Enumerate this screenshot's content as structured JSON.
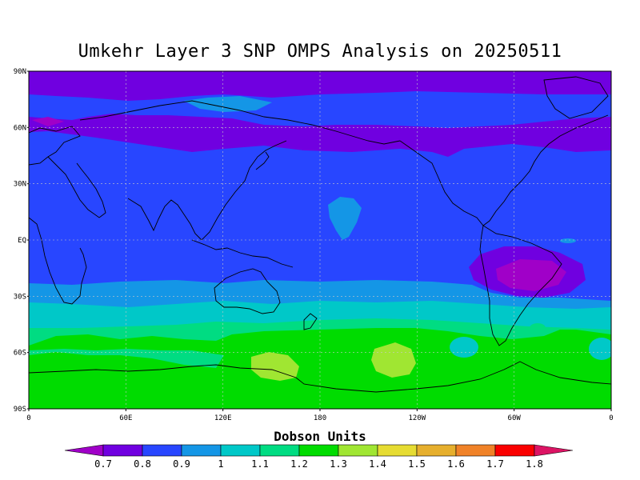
{
  "title": "Umkehr Layer 3 SNP OMPS Analysis on 20250511",
  "colorbar_title": "Dobson Units",
  "y_ticks": [
    "90N",
    "60N",
    "30N",
    "EQ",
    "30S",
    "60S",
    "90S"
  ],
  "x_ticks": [
    "0",
    "60E",
    "120E",
    "180",
    "120W",
    "60W",
    "0"
  ],
  "colorbar_labels": [
    "0.7",
    "0.8",
    "0.9",
    "1",
    "1.1",
    "1.2",
    "1.3",
    "1.4",
    "1.5",
    "1.6",
    "1.7",
    "1.8"
  ],
  "colors": {
    "lt07": "#a000c8",
    "b07_08": "#7000e0",
    "b08_09": "#2846ff",
    "b09_10": "#1496e6",
    "b10_11": "#00c8c8",
    "b11_12": "#00dc82",
    "b12_13": "#00dc00",
    "b13_14": "#a0e632",
    "b14_15": "#e6dc32",
    "b15_16": "#e6af2d",
    "b16_17": "#f08228",
    "b17_18": "#fa0000",
    "gt18": "#dc1464"
  },
  "chart_data": {
    "type": "heatmap",
    "projection": "equirectangular",
    "lon_range": [
      0,
      360
    ],
    "lat_range": [
      -90,
      90
    ],
    "units": "Dobson Units",
    "levels": [
      0.7,
      0.8,
      0.9,
      1.0,
      1.1,
      1.2,
      1.3,
      1.4,
      1.5,
      1.6,
      1.7,
      1.8
    ],
    "grid": true,
    "legend": "bottom",
    "field_summary": [
      {
        "region": "Arctic band 65N-90N",
        "value_range": "0.7-0.8"
      },
      {
        "region": "Northern mid-latitudes and tropics",
        "value_range": "0.8-0.9"
      },
      {
        "region": "Central Pacific near 15N, 190E",
        "value_range": "0.9-1.0"
      },
      {
        "region": "South America near 25S, 310E",
        "value_range": "0.7-0.8"
      },
      {
        "region": "Southern subtropics 25S-40S",
        "value_range": "0.9-1.1"
      },
      {
        "region": "Southern mid-latitudes 40S-55S",
        "value_range": "1.1-1.2"
      },
      {
        "region": "Southern high latitudes 55S-90S",
        "value_range": "1.2-1.3"
      },
      {
        "region": "Near 68S, 150E and 62S, 210E",
        "value_range": "1.3-1.4"
      }
    ]
  }
}
